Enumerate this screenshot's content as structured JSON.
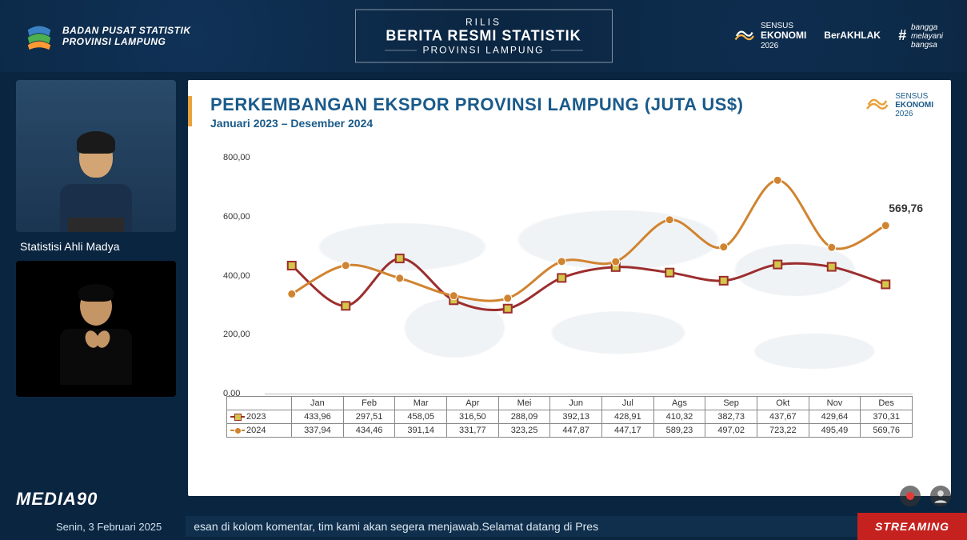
{
  "header": {
    "org_line1": "BADAN PUSAT STATISTIK",
    "org_line2": "PROVINSI LAMPUNG",
    "title_small": "RILIS",
    "title_main": "BERITA RESMI STATISTIK",
    "title_sub": "PROVINSI LAMPUNG",
    "right_items": {
      "sensus": {
        "l1": "SENSUS",
        "l2": "EKONOMI",
        "l3": "2026"
      },
      "berakhlak": "BerAKHLAK",
      "bangga": {
        "l1": "bangga",
        "l2": "melayani",
        "l3": "bangsa"
      }
    }
  },
  "left": {
    "presenter_caption": "Statistisi Ahli Madya"
  },
  "media_watermark": "MEDIA90",
  "slide": {
    "title": "PERKEMBANGAN EKSPOR PROVINSI LAMPUNG (JUTA US$)",
    "subtitle": "Januari 2023 – Desember 2024",
    "sensus": {
      "l1": "SENSUS",
      "l2": "EKONOMI",
      "l3": "2026"
    },
    "chart": {
      "type": "line",
      "callout_value": "569,76",
      "yaxis": {
        "min": 0,
        "max": 800,
        "step": 200,
        "tick_labels": [
          "0,00",
          "200,00",
          "400,00",
          "600,00",
          "800,00"
        ]
      },
      "months": [
        "Jan",
        "Feb",
        "Mar",
        "Apr",
        "Mei",
        "Jun",
        "Jul",
        "Ags",
        "Sep",
        "Okt",
        "Nov",
        "Des"
      ],
      "series": {
        "2023": {
          "label": "2023",
          "color": "#9c2e2e",
          "marker": "square",
          "marker_fill": "#d4c64a",
          "values": [
            433.96,
            297.51,
            458.05,
            316.5,
            288.09,
            392.13,
            428.91,
            410.32,
            382.73,
            437.67,
            429.64,
            370.31
          ],
          "display": [
            "433,96",
            "297,51",
            "458,05",
            "316,50",
            "288,09",
            "392,13",
            "428,91",
            "410,32",
            "382,73",
            "437,67",
            "429,64",
            "370,31"
          ]
        },
        "2024": {
          "label": "2024",
          "color": "#d08430",
          "marker": "circle",
          "marker_fill": "#d08430",
          "values": [
            337.94,
            434.46,
            391.14,
            331.77,
            323.25,
            447.87,
            447.17,
            589.23,
            497.02,
            723.22,
            495.49,
            569.76
          ],
          "display": [
            "337,94",
            "434,46",
            "391,14",
            "331,77",
            "323,25",
            "447,87",
            "447,17",
            "589,23",
            "497,02",
            "723,22",
            "495,49",
            "569,76"
          ]
        }
      },
      "background": "#ffffff",
      "grid_color": "#bbbbbb",
      "line_width": 3
    }
  },
  "bottom": {
    "date": "Senin, 3 Februari 2025",
    "ticker": "esan di kolom komentar, tim kami akan segera menjawab.Selamat datang di Pres",
    "streaming_label": "STREAMING"
  }
}
